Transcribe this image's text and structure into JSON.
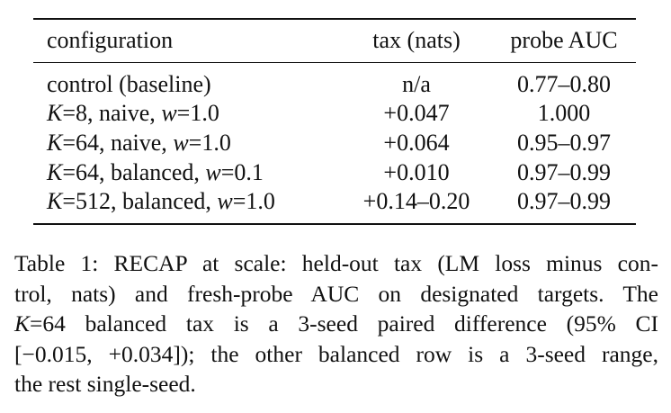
{
  "table": {
    "headers": {
      "configuration": "configuration",
      "tax": "tax (nats)",
      "auc": "probe AUC"
    },
    "rows": [
      {
        "var": "",
        "eq": "",
        "rest": "control (baseline)",
        "tax": "n/a",
        "auc": "0.77–0.80"
      },
      {
        "var": "K",
        "eq": "=8, naive, ",
        "w": "w",
        "weq": "=1.0",
        "tax": "+0.047",
        "auc": "1.000"
      },
      {
        "var": "K",
        "eq": "=64, naive, ",
        "w": "w",
        "weq": "=1.0",
        "tax": "+0.064",
        "auc": "0.95–0.97"
      },
      {
        "var": "K",
        "eq": "=64, balanced, ",
        "w": "w",
        "weq": "=0.1",
        "tax": "+0.010",
        "auc": "0.97–0.99"
      },
      {
        "var": "K",
        "eq": "=512, balanced, ",
        "w": "w",
        "weq": "=1.0",
        "tax": "+0.14–0.20",
        "auc": "0.97–0.99"
      }
    ]
  },
  "caption": {
    "line1": "Table 1: RECAP at scale: held-out tax (LM loss minus con-",
    "line2": "trol, nats) and fresh-probe AUC on designated targets. The",
    "line3_var": "K",
    "line3_rest": "=64 balanced tax is a 3-seed paired difference (95% CI",
    "line4_ci": "[−0.015, +0.034]",
    "line4_rest": "); the other balanced row is a 3-seed range,",
    "line5": "the rest single-seed."
  }
}
